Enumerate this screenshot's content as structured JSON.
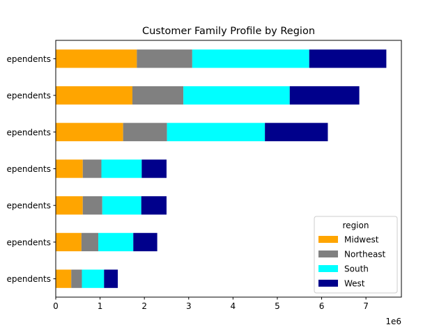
{
  "chart_data": {
    "type": "bar",
    "orientation": "horizontal",
    "stacked": true,
    "title": "Customer Family Profile by Region",
    "xlabel": "",
    "ylabel": "",
    "x_offset_label": "1e6",
    "xlim": [
      0,
      7800000
    ],
    "x_ticks": [
      0,
      1000000,
      2000000,
      3000000,
      4000000,
      5000000,
      6000000,
      7000000
    ],
    "x_tick_labels": [
      "0",
      "1",
      "2",
      "3",
      "4",
      "5",
      "6",
      "7"
    ],
    "grid": false,
    "categories": [
      "ependents",
      "ependents",
      "ependents",
      "ependents",
      "ependents",
      "ependents",
      "ependents"
    ],
    "legend": {
      "title": "region",
      "placement": "lower-right"
    },
    "series": [
      {
        "name": "Midwest",
        "color": "#ffa500",
        "values": [
          350000,
          580000,
          610000,
          610000,
          1520000,
          1730000,
          1830000
        ]
      },
      {
        "name": "Northeast",
        "color": "#808080",
        "values": [
          240000,
          380000,
          440000,
          420000,
          990000,
          1150000,
          1250000
        ]
      },
      {
        "name": "South",
        "color": "#00ffff",
        "values": [
          500000,
          790000,
          880000,
          910000,
          2210000,
          2400000,
          2640000
        ]
      },
      {
        "name": "West",
        "color": "#00008b",
        "values": [
          310000,
          540000,
          570000,
          560000,
          1420000,
          1570000,
          1740000
        ]
      }
    ]
  }
}
